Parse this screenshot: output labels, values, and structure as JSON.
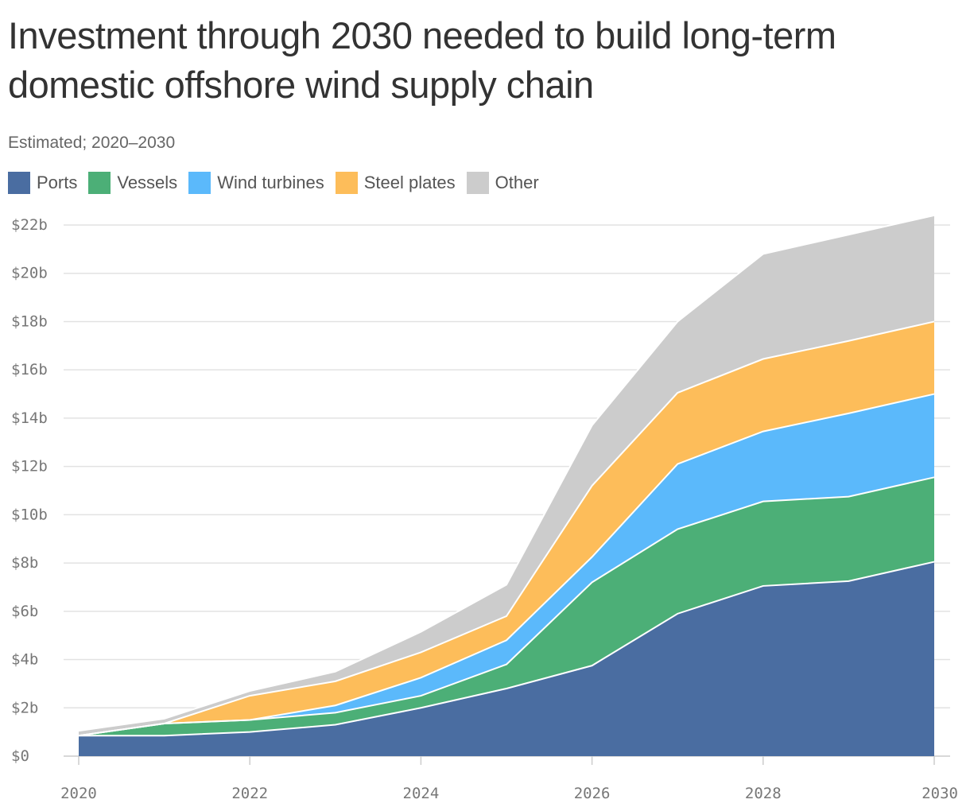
{
  "chart_data": {
    "type": "area",
    "stacked": true,
    "title": "Investment through 2030 needed to build long-term domestic offshore wind supply chain",
    "subtitle": "Estimated; 2020–2030",
    "x": [
      2020,
      2021,
      2022,
      2023,
      2024,
      2025,
      2026,
      2027,
      2028,
      2029,
      2030
    ],
    "x_ticks": [
      "2020",
      "2022",
      "2024",
      "2026",
      "2028",
      "2030"
    ],
    "y_ticks": [
      "$0",
      "$2b",
      "$4b",
      "$6b",
      "$8b",
      "$10b",
      "$12b",
      "$14b",
      "$16b",
      "$18b",
      "$20b",
      "$22b"
    ],
    "ylim": [
      0,
      22
    ],
    "grid": true,
    "legend_position": "top-left",
    "series": [
      {
        "name": "Ports",
        "color": "#4a6da1",
        "values": [
          0.85,
          0.85,
          1.0,
          1.3,
          2.0,
          2.8,
          3.75,
          5.9,
          7.05,
          7.25,
          8.05
        ]
      },
      {
        "name": "Vessels",
        "color": "#4caf77",
        "values": [
          0,
          0.5,
          0.5,
          0.5,
          0.5,
          1.0,
          3.45,
          3.5,
          3.5,
          3.5,
          3.5
        ]
      },
      {
        "name": "Wind turbines",
        "color": "#5bb9fb",
        "values": [
          0,
          0,
          0,
          0.3,
          0.75,
          1.0,
          1.05,
          2.7,
          2.9,
          3.45,
          3.45
        ]
      },
      {
        "name": "Steel plates",
        "color": "#fdbd5a",
        "values": [
          0,
          0,
          1.0,
          1.0,
          1.05,
          1.0,
          2.95,
          2.95,
          3.0,
          3.0,
          3.0
        ]
      },
      {
        "name": "Other",
        "color": "#cccccc",
        "values": [
          0.2,
          0.2,
          0.2,
          0.4,
          0.85,
          1.3,
          2.5,
          2.95,
          4.35,
          4.4,
          4.4
        ]
      }
    ]
  }
}
